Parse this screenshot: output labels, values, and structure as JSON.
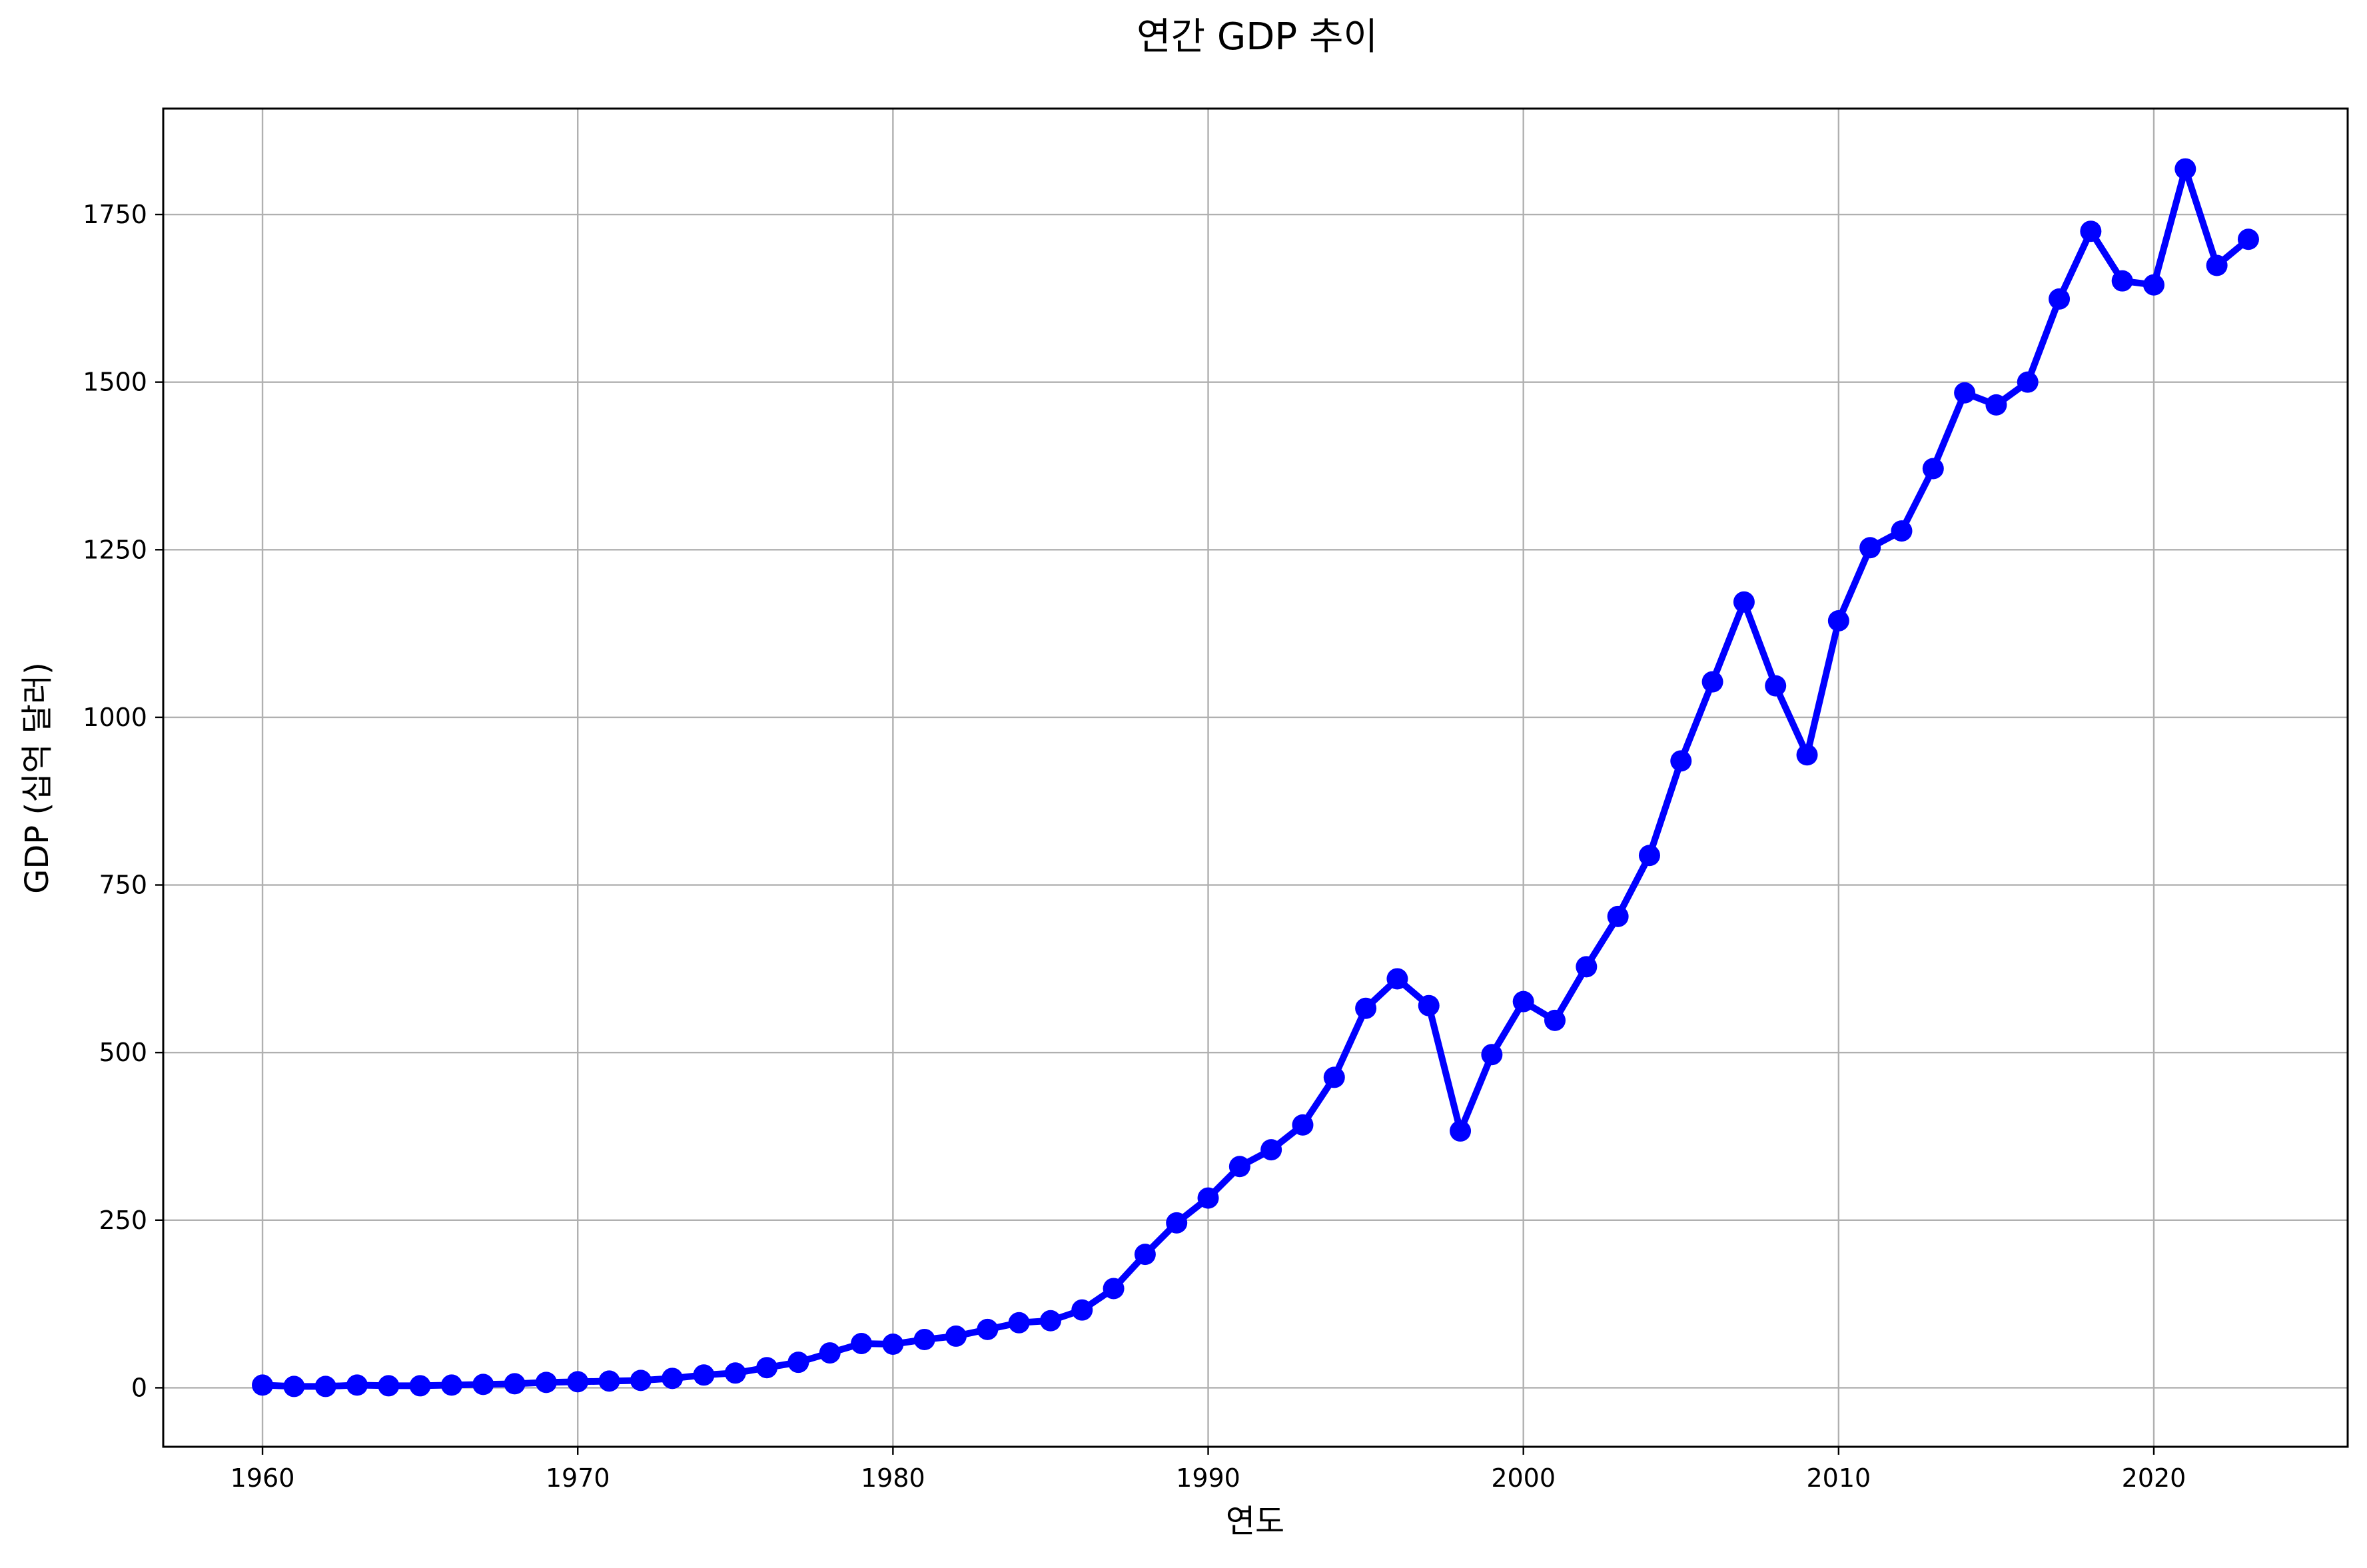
{
  "chart_data": {
    "type": "line",
    "title": "연간 GDP 추이",
    "xlabel": "연도",
    "ylabel": "GDP (십억 달러)",
    "xlim": [
      1956.85,
      2026.15
    ],
    "ylim": [
      -88,
      1908
    ],
    "xticks": [
      1960,
      1970,
      1980,
      1990,
      2000,
      2010,
      2020
    ],
    "yticks": [
      0,
      250,
      500,
      750,
      1000,
      1250,
      1500,
      1750
    ],
    "grid": true,
    "line_color": "#0000ff",
    "series": [
      {
        "x": [
          1960,
          1961,
          1962,
          1963,
          1964,
          1965,
          1966,
          1967,
          1968,
          1969,
          1970,
          1971,
          1972,
          1973,
          1974,
          1975,
          1976,
          1977,
          1978,
          1979,
          1980,
          1981,
          1982,
          1983,
          1984,
          1985,
          1986,
          1987,
          1988,
          1989,
          1990,
          1991,
          1992,
          1993,
          1994,
          1995,
          1996,
          1997,
          1998,
          1999,
          2000,
          2001,
          2002,
          2003,
          2004,
          2005,
          2006,
          2007,
          2008,
          2009,
          2010,
          2011,
          2012,
          2013,
          2014,
          2015,
          2016,
          2017,
          2018,
          2019,
          2020,
          2021,
          2022,
          2023
        ],
        "values": [
          4,
          2,
          2,
          4,
          3,
          3,
          4,
          5,
          6,
          8,
          9,
          10,
          11,
          14,
          19,
          22,
          30,
          38,
          52,
          66,
          65,
          72,
          77,
          87,
          97,
          100,
          116,
          148,
          199,
          246,
          283,
          330,
          355,
          392,
          463,
          566,
          610,
          570,
          383,
          497,
          576,
          548,
          628,
          703,
          794,
          935,
          1053,
          1172,
          1047,
          944,
          1144,
          1253,
          1278,
          1371,
          1484,
          1466,
          1500,
          1624,
          1725,
          1651,
          1645,
          1818,
          1674,
          1713
        ]
      }
    ]
  }
}
